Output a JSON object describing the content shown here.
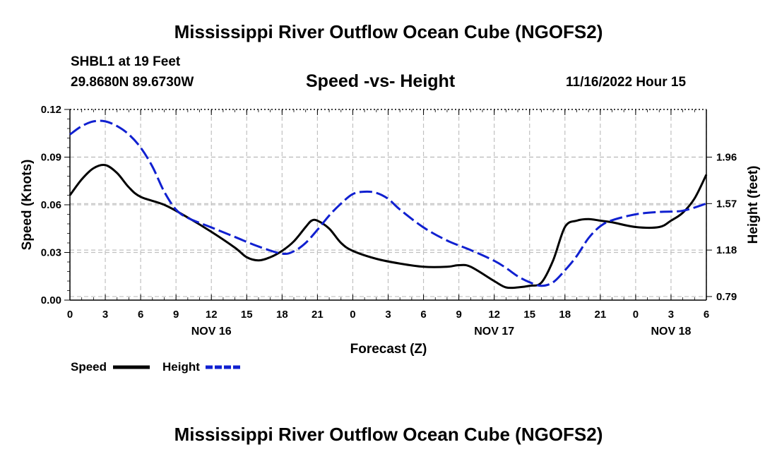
{
  "page": {
    "title_top": "Mississippi River Outflow Ocean Cube (NGOFS2)",
    "title_bottom": "Mississippi River Outflow Ocean Cube (NGOFS2)",
    "station": "SHBL1 at 19 Feet",
    "coords": "29.8680N  89.6730W",
    "datetime": "11/16/2022 Hour 15"
  },
  "chart_data": {
    "type": "line",
    "title": "Speed -vs- Height",
    "xlabel": "Forecast (Z)",
    "ylabel_left": "Speed (Knots)",
    "ylabel_right": "Height (feet)",
    "x_range_hours": [
      0,
      54
    ],
    "x_ticks": [
      {
        "h": 0,
        "label": "0"
      },
      {
        "h": 3,
        "label": "3"
      },
      {
        "h": 6,
        "label": "6"
      },
      {
        "h": 9,
        "label": "9"
      },
      {
        "h": 12,
        "label": "12"
      },
      {
        "h": 15,
        "label": "15"
      },
      {
        "h": 18,
        "label": "18"
      },
      {
        "h": 21,
        "label": "21"
      },
      {
        "h": 24,
        "label": "0"
      },
      {
        "h": 27,
        "label": "3"
      },
      {
        "h": 30,
        "label": "6"
      },
      {
        "h": 33,
        "label": "9"
      },
      {
        "h": 36,
        "label": "12"
      },
      {
        "h": 39,
        "label": "15"
      },
      {
        "h": 42,
        "label": "18"
      },
      {
        "h": 45,
        "label": "21"
      },
      {
        "h": 48,
        "label": "0"
      },
      {
        "h": 51,
        "label": "3"
      },
      {
        "h": 54,
        "label": "6"
      }
    ],
    "date_labels": [
      {
        "h": 12,
        "label": "NOV 16"
      },
      {
        "h": 36,
        "label": "NOV 17"
      },
      {
        "h": 51,
        "label": "NOV 18"
      }
    ],
    "y_left": {
      "range": [
        0,
        0.12
      ],
      "ticks": [
        0,
        0.03,
        0.06,
        0.09,
        0.12
      ],
      "tick_labels": [
        "0.00",
        "0.03",
        "0.06",
        "0.09",
        "0.12"
      ]
    },
    "y_right": {
      "range": [
        0.76,
        2.36
      ],
      "ticks": [
        0.79,
        1.18,
        1.57,
        1.96
      ],
      "tick_labels": [
        "0.79",
        "1.18",
        "1.57",
        "1.96"
      ]
    },
    "series": [
      {
        "name": "Speed",
        "axis": "left",
        "color": "#000000",
        "dash": "solid",
        "x": [
          0,
          1,
          2,
          3,
          4,
          5,
          6,
          8,
          10,
          12,
          14,
          15,
          16,
          17,
          18,
          19,
          20,
          20.5,
          21,
          22,
          23,
          24,
          26,
          28,
          30,
          32,
          33,
          34,
          36,
          37,
          38,
          39,
          40,
          41,
          42,
          43,
          44,
          45,
          46,
          48,
          50,
          51,
          52,
          53,
          54
        ],
        "values": [
          0.066,
          0.076,
          0.083,
          0.085,
          0.08,
          0.071,
          0.065,
          0.06,
          0.052,
          0.043,
          0.033,
          0.027,
          0.025,
          0.027,
          0.031,
          0.037,
          0.046,
          0.05,
          0.05,
          0.045,
          0.036,
          0.031,
          0.026,
          0.023,
          0.021,
          0.021,
          0.022,
          0.021,
          0.012,
          0.008,
          0.008,
          0.009,
          0.011,
          0.025,
          0.046,
          0.05,
          0.051,
          0.05,
          0.049,
          0.046,
          0.046,
          0.05,
          0.055,
          0.064,
          0.079
        ]
      },
      {
        "name": "Height",
        "axis": "right",
        "color": "#1020d0",
        "dash": "dashed",
        "x": [
          0,
          1,
          2,
          3,
          4,
          5,
          6,
          7,
          8,
          9,
          10,
          12,
          14,
          16,
          18,
          19,
          20,
          21,
          22,
          23,
          24,
          25,
          26,
          27,
          28,
          30,
          32,
          34,
          36,
          37,
          38,
          39,
          40,
          41,
          42,
          43,
          44,
          45,
          46,
          48,
          50,
          52,
          54
        ],
        "values": [
          2.15,
          2.22,
          2.26,
          2.26,
          2.22,
          2.15,
          2.04,
          1.88,
          1.67,
          1.52,
          1.45,
          1.37,
          1.29,
          1.21,
          1.15,
          1.17,
          1.24,
          1.35,
          1.47,
          1.57,
          1.65,
          1.67,
          1.66,
          1.61,
          1.52,
          1.37,
          1.26,
          1.18,
          1.09,
          1.03,
          0.96,
          0.91,
          0.88,
          0.91,
          1.01,
          1.13,
          1.28,
          1.38,
          1.43,
          1.48,
          1.5,
          1.51,
          1.57
        ]
      }
    ],
    "legend": {
      "placement": "bottom-left",
      "entries": [
        {
          "label": "Speed",
          "color": "#000000",
          "style": "solid"
        },
        {
          "label": "Height",
          "color": "#1020d0",
          "style": "dashed"
        }
      ]
    },
    "grid": true
  }
}
